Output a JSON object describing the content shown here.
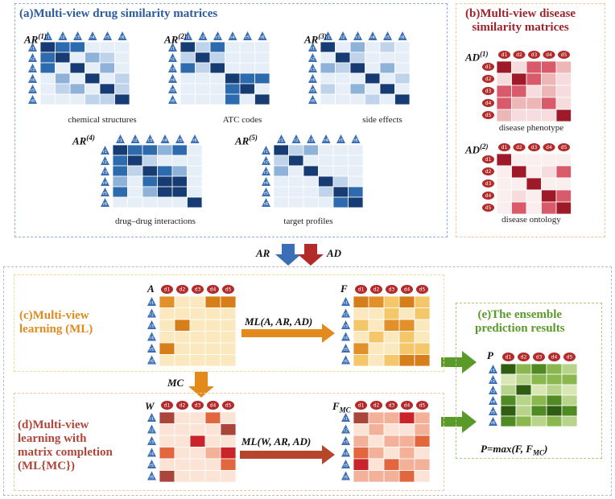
{
  "colors": {
    "blue_panel": "#8fb0dd",
    "orange_panel": "#f0c8a0",
    "yellow_panel": "#f3dc9a",
    "green_panel": "#a8cc78",
    "title_blue": "#2a5aa0",
    "title_red": "#a0222a",
    "title_orange": "#e08a1e",
    "title_dred": "#b0463a",
    "title_green": "#5a9a2a",
    "drug_icon": "#3a6fb5",
    "disease_icon": "#b22a2a"
  },
  "panel_a": {
    "title": "(a)Multi-view drug similarity matrices",
    "matrices": [
      {
        "name": "AR",
        "sup": "(1)",
        "label": "chemical structures"
      },
      {
        "name": "AR",
        "sup": "(2)",
        "label": "ATC codes"
      },
      {
        "name": "AR",
        "sup": "(3)",
        "label": "side effects"
      },
      {
        "name": "AR",
        "sup": "(4)",
        "label": "drug–drug interactions"
      },
      {
        "name": "AR",
        "sup": "(5)",
        "label": "target profiles"
      }
    ],
    "row_icon": "r"
  },
  "panel_b": {
    "title": "(b)Multi-view disease\nsimilarity matrices",
    "matrices": [
      {
        "name": "AD",
        "sup": "(1)",
        "label": "disease phenotype"
      },
      {
        "name": "AD",
        "sup": "(2)",
        "label": "disease ontology"
      }
    ],
    "col_icon": "d"
  },
  "merge": {
    "left": "AR",
    "right": "AD"
  },
  "panel_c": {
    "title": "(c)Multi-view\nlearning (ML)",
    "matrix_in": "A",
    "matrix_out": "F",
    "op": "ML(A, AR, AD)"
  },
  "mc_label": "MC",
  "panel_d": {
    "title": "(d)Multi-view\nlearning with\nmatrix completion\n(ML{MC})",
    "matrix_in": "W",
    "matrix_out": "F",
    "matrix_out_sub": "MC",
    "op": "ML(W, AR, AD)"
  },
  "panel_e": {
    "title": "(e)The ensemble\nprediction results",
    "matrix": "P",
    "formula": "P=max(F, F",
    "formula_sub": "MC",
    "formula_end": ")"
  }
}
